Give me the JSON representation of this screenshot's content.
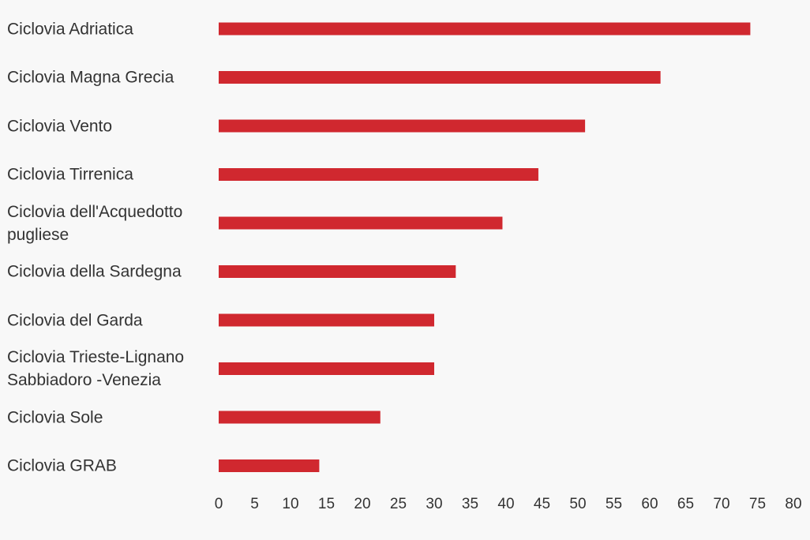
{
  "chart_data": {
    "type": "bar",
    "orientation": "horizontal",
    "categories": [
      "Ciclovia Adriatica",
      "Ciclovia Magna Grecia",
      "Ciclovia Vento",
      "Ciclovia Tirrenica",
      "Ciclovia dell'Acquedotto\npugliese",
      "Ciclovia della Sardegna",
      "Ciclovia del Garda",
      "Ciclovia Trieste-Lignano\n Sabbiadoro -Venezia",
      "Ciclovia Sole",
      "Ciclovia GRAB"
    ],
    "values": [
      74,
      61.5,
      51,
      44.5,
      39.5,
      33,
      30,
      30,
      22.5,
      14
    ],
    "xlim": [
      0,
      80
    ],
    "xticks": [
      "0",
      "5",
      "10",
      "15",
      "20",
      "25",
      "30",
      "35",
      "40",
      "45",
      "50",
      "55",
      "60",
      "65",
      "70",
      "75",
      "80"
    ],
    "bar_color": "#d0282f",
    "grid": false,
    "legend": "none",
    "title": "",
    "xlabel": "",
    "ylabel": ""
  }
}
